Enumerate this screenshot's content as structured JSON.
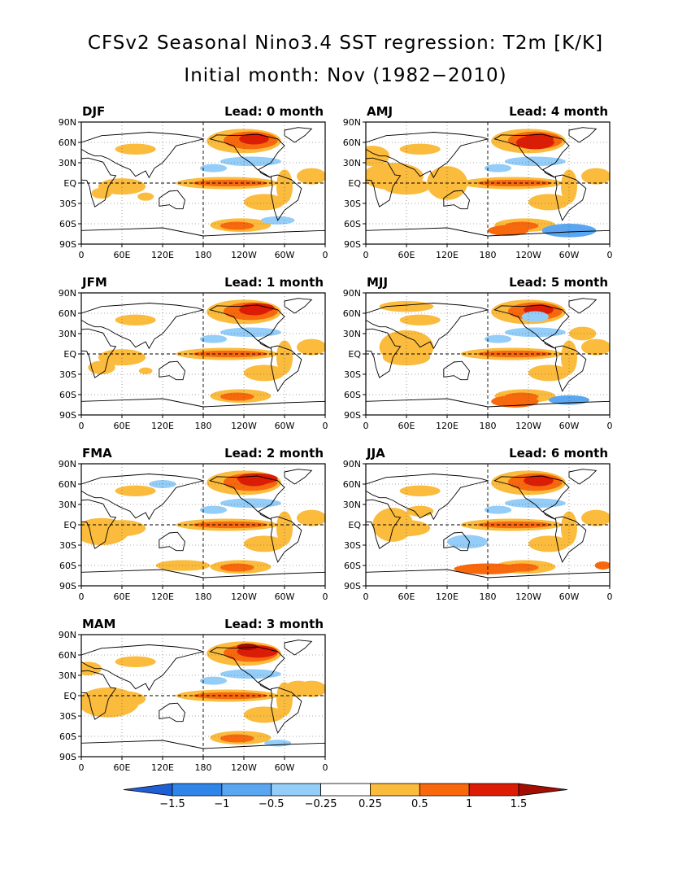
{
  "figure": {
    "title": "CFSv2 Seasonal Nino3.4 SST regression: T2m [K/K]",
    "subtitle": "Initial month: Nov (1982−2010)"
  },
  "axes": {
    "lon_ticks": [
      "0",
      "60E",
      "120E",
      "180",
      "120W",
      "60W",
      "0"
    ],
    "lat_ticks": [
      "90N",
      "60N",
      "30N",
      "EQ",
      "30S",
      "60S",
      "90S"
    ]
  },
  "panels": [
    {
      "season": "DJF",
      "lead": "Lead: 0 month"
    },
    {
      "season": "AMJ",
      "lead": "Lead: 4 month"
    },
    {
      "season": "JFM",
      "lead": "Lead: 1 month"
    },
    {
      "season": "MJJ",
      "lead": "Lead: 5 month"
    },
    {
      "season": "FMA",
      "lead": "Lead: 2 month"
    },
    {
      "season": "JJA",
      "lead": "Lead: 6 month"
    },
    {
      "season": "MAM",
      "lead": "Lead: 3 month"
    }
  ],
  "colorbar": {
    "labels": [
      "−1.5",
      "−1",
      "−0.5",
      "−0.25",
      "0.25",
      "0.5",
      "1",
      "1.5"
    ],
    "colors": [
      "#1f5fd6",
      "#2f86e8",
      "#5aa6f0",
      "#93cdf8",
      "#ffffff",
      "#fbbb3c",
      "#f8680c",
      "#dd1c05",
      "#a30d02"
    ]
  },
  "palette": {
    "neg1": "#93cdf8",
    "neg2": "#5aa6f0",
    "neg3": "#2f86e8",
    "pos1": "#fbbb3c",
    "pos2": "#f8680c",
    "pos3": "#dd1c05",
    "pos4": "#a30d02"
  }
}
